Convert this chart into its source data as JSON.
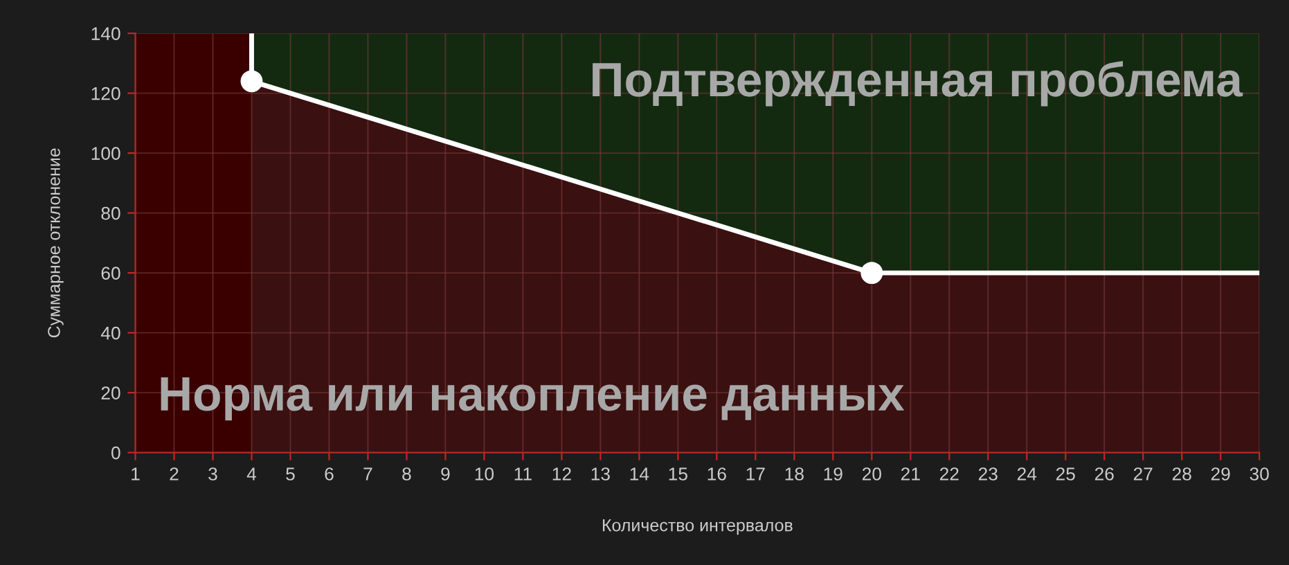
{
  "chart_data": {
    "type": "line",
    "xlabel": "Количество интервалов",
    "ylabel": "Суммарное отклонение",
    "annotations": [
      "Подтвержденная проблема",
      "Норма или накопление данных"
    ],
    "xlim": [
      1,
      30
    ],
    "ylim": [
      0,
      140
    ],
    "xticks": [
      1,
      2,
      3,
      4,
      5,
      6,
      7,
      8,
      9,
      10,
      11,
      12,
      13,
      14,
      15,
      16,
      17,
      18,
      19,
      20,
      21,
      22,
      23,
      24,
      25,
      26,
      27,
      28,
      29,
      30
    ],
    "yticks": [
      0,
      20,
      40,
      60,
      80,
      100,
      120,
      140
    ],
    "grid": true,
    "bands": [
      {
        "axis": "x",
        "from": 1,
        "to": 4,
        "color": "#3a0000"
      }
    ],
    "series": [
      {
        "type": "area",
        "color": "#3a1010",
        "x": [
          4,
          20,
          30
        ],
        "values": [
          124,
          60,
          60
        ]
      },
      {
        "color": "#ffffff",
        "x": [
          4,
          4,
          20,
          30
        ],
        "values": [
          140,
          124,
          60,
          60
        ],
        "marker": "none",
        "line_style": "solid"
      },
      {
        "type": "scatter",
        "color": "#ffffff",
        "x": [
          4,
          20
        ],
        "values": [
          124,
          60
        ],
        "marker": "circle"
      }
    ]
  }
}
